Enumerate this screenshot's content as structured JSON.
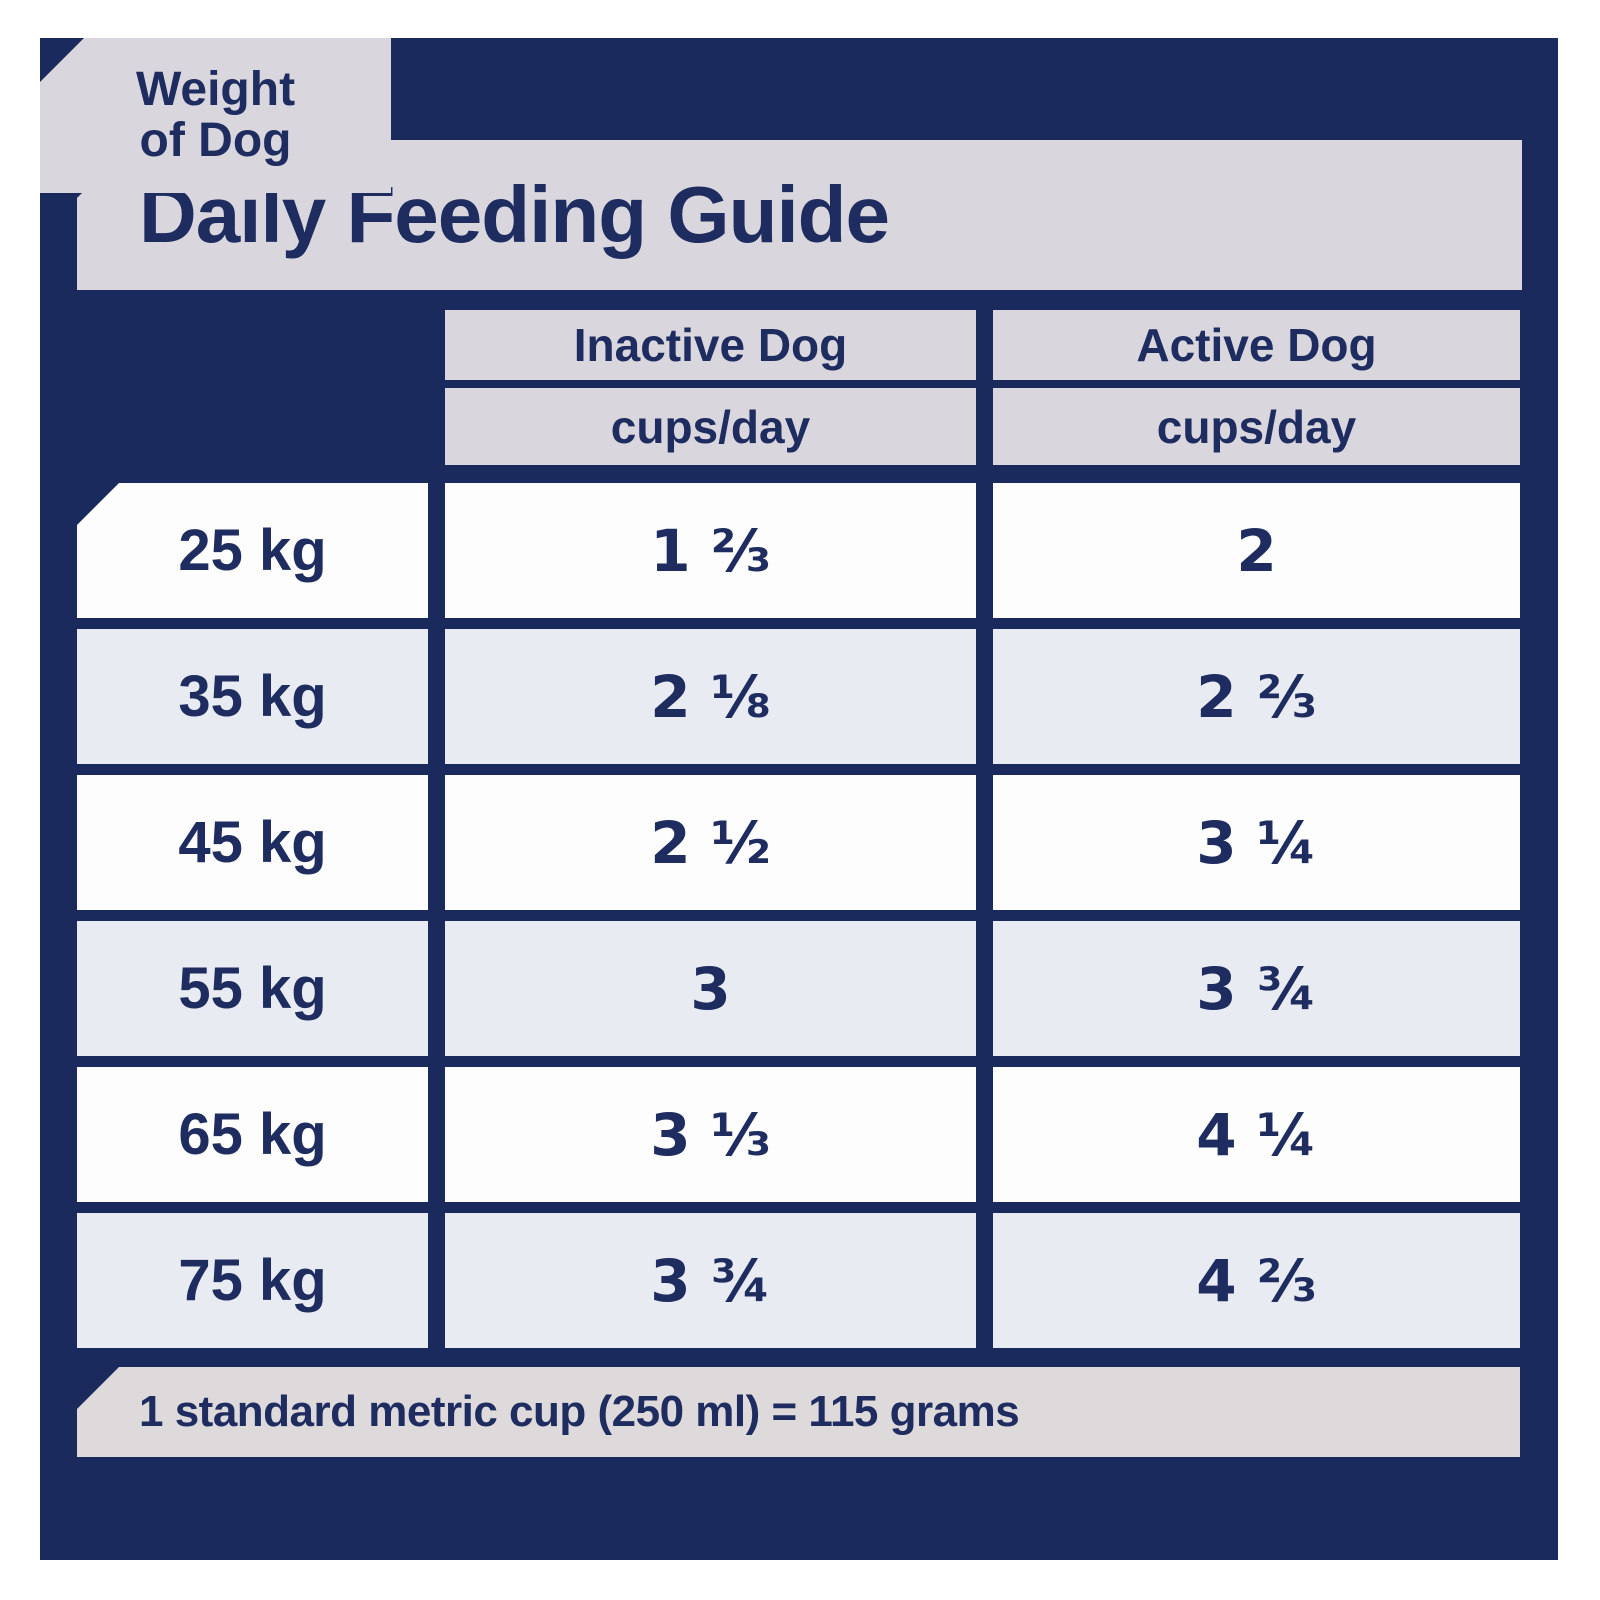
{
  "title": "Daily Feeding Guide",
  "table": {
    "weight_header": {
      "line1": "Weight",
      "line2": "of Dog"
    },
    "columns": [
      {
        "label": "Inactive Dog",
        "unit": "cups/day"
      },
      {
        "label": "Active Dog",
        "unit": "cups/day"
      }
    ],
    "rows": [
      {
        "weight": "25 kg",
        "inactive": "1 ⅔",
        "active": "2"
      },
      {
        "weight": "35 kg",
        "inactive": "2 ⅛",
        "active": "2 ⅔"
      },
      {
        "weight": "45 kg",
        "inactive": "2 ½",
        "active": "3 ¼"
      },
      {
        "weight": "55 kg",
        "inactive": "3",
        "active": "3 ¾"
      },
      {
        "weight": "65 kg",
        "inactive": "3 ⅓",
        "active": "4 ¼"
      },
      {
        "weight": "75 kg",
        "inactive": "3 ¾",
        "active": "4 ⅔"
      }
    ]
  },
  "footnote": "1 standard metric cup (250 ml) = 115 grams",
  "colors": {
    "navy": "#1b2a5c",
    "band": "#d9d6dd",
    "footer_band": "#ded9db",
    "row_light": "#fdfdfe",
    "row_shaded": "#e9ebf2",
    "text": "#1e2c60"
  }
}
